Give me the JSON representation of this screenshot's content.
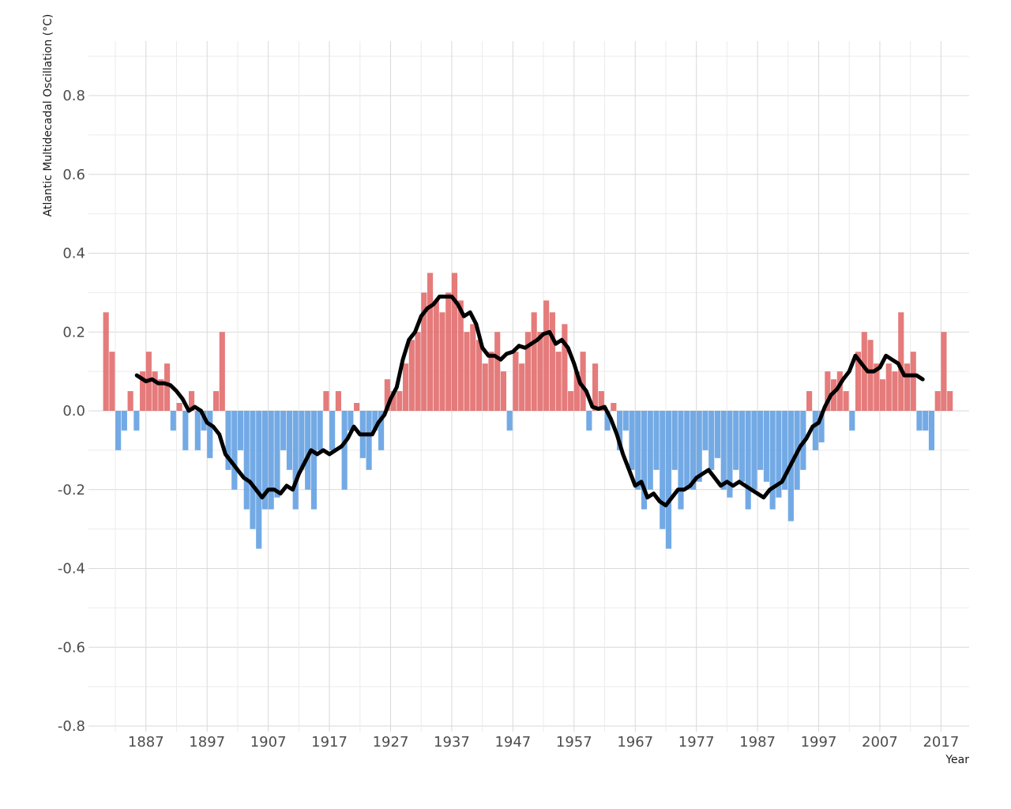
{
  "chart_data": {
    "type": "bar",
    "title": "",
    "xlabel": "Year",
    "ylabel": "Atlantic Multidecadal Oscillation (°C)",
    "xlim": [
      1877.6,
      2021.6
    ],
    "ylim": [
      -0.8,
      0.94
    ],
    "grid": true,
    "x_ticks": [
      1887,
      1897,
      1907,
      1917,
      1927,
      1937,
      1947,
      1957,
      1967,
      1977,
      1987,
      1997,
      2007,
      2017
    ],
    "y_ticks": [
      0.8,
      0.6,
      0.4,
      0.2,
      0.0,
      -0.2,
      -0.4,
      -0.6,
      -0.8
    ],
    "y_tick_labels": [
      "0.8",
      "0.6",
      "0.4",
      "0.2",
      "0.0",
      "-0.2",
      "-0.4",
      "-0.6",
      "-0.8"
    ],
    "colors": {
      "positive": "#e06464",
      "negative": "#5a9be0",
      "smooth": "#000000"
    },
    "bars": {
      "start_year": 1880,
      "values": [
        0.25,
        0.15,
        -0.1,
        -0.05,
        0.05,
        -0.05,
        0.1,
        0.15,
        0.1,
        0.08,
        0.12,
        -0.05,
        0.02,
        -0.1,
        0.05,
        -0.1,
        -0.05,
        -0.12,
        0.05,
        0.2,
        -0.15,
        -0.2,
        -0.1,
        -0.25,
        -0.3,
        -0.35,
        -0.25,
        -0.25,
        -0.22,
        -0.1,
        -0.15,
        -0.25,
        -0.15,
        -0.2,
        -0.25,
        -0.1,
        0.05,
        -0.1,
        0.05,
        -0.2,
        -0.05,
        0.02,
        -0.12,
        -0.15,
        -0.05,
        -0.1,
        0.08,
        0.05,
        0.05,
        0.12,
        0.18,
        0.2,
        0.3,
        0.35,
        0.28,
        0.25,
        0.3,
        0.35,
        0.28,
        0.2,
        0.22,
        0.18,
        0.12,
        0.15,
        0.2,
        0.1,
        -0.05,
        0.15,
        0.12,
        0.2,
        0.25,
        0.2,
        0.28,
        0.25,
        0.15,
        0.22,
        0.05,
        0.1,
        0.15,
        -0.05,
        0.12,
        0.05,
        -0.05,
        0.02,
        -0.1,
        -0.05,
        -0.15,
        -0.2,
        -0.25,
        -0.2,
        -0.15,
        -0.3,
        -0.35,
        -0.15,
        -0.25,
        -0.2,
        -0.2,
        -0.18,
        -0.1,
        -0.15,
        -0.12,
        -0.2,
        -0.22,
        -0.15,
        -0.18,
        -0.25,
        -0.2,
        -0.15,
        -0.18,
        -0.25,
        -0.22,
        -0.2,
        -0.28,
        -0.2,
        -0.15,
        0.05,
        -0.1,
        -0.08,
        0.1,
        0.08,
        0.1,
        0.05,
        -0.05,
        0.15,
        0.2,
        0.18,
        0.12,
        0.08,
        0.12,
        0.1,
        0.25,
        0.12,
        0.15,
        -0.05,
        -0.05,
        -0.1,
        0.05,
        0.2,
        0.05
      ]
    },
    "smooth": {
      "x": [
        1885.5,
        1887,
        1888,
        1889,
        1890,
        1891,
        1892,
        1893,
        1894,
        1895,
        1896,
        1897,
        1898,
        1899,
        1900,
        1901,
        1902,
        1903,
        1904,
        1905,
        1906,
        1907,
        1908,
        1909,
        1910,
        1911,
        1912,
        1913,
        1914,
        1915,
        1916,
        1917,
        1918,
        1919,
        1920,
        1921,
        1922,
        1923,
        1924,
        1925,
        1926,
        1927,
        1928,
        1929,
        1930,
        1931,
        1932,
        1933,
        1934,
        1935,
        1936,
        1937,
        1938,
        1939,
        1940,
        1941,
        1942,
        1943,
        1944,
        1945,
        1946,
        1947,
        1948,
        1949,
        1950,
        1951,
        1952,
        1953,
        1954,
        1955,
        1956,
        1957,
        1958,
        1959,
        1960,
        1961,
        1962,
        1963,
        1964,
        1965,
        1966,
        1967,
        1968,
        1969,
        1970,
        1971,
        1972,
        1973,
        1974,
        1975,
        1976,
        1977,
        1978,
        1979,
        1980,
        1981,
        1982,
        1983,
        1984,
        1985,
        1986,
        1987,
        1988,
        1989,
        1990,
        1991,
        1992,
        1993,
        1994,
        1995,
        1996,
        1997,
        1998,
        1999,
        2000,
        2001,
        2002,
        2003,
        2004,
        2005,
        2006,
        2007,
        2008,
        2009,
        2010,
        2011,
        2012,
        2013,
        2014
      ],
      "y": [
        0.09,
        0.075,
        0.08,
        0.07,
        0.07,
        0.065,
        0.05,
        0.03,
        0.0,
        0.01,
        0.0,
        -0.03,
        -0.04,
        -0.06,
        -0.11,
        -0.13,
        -0.15,
        -0.17,
        -0.18,
        -0.2,
        -0.22,
        -0.2,
        -0.2,
        -0.21,
        -0.19,
        -0.2,
        -0.16,
        -0.13,
        -0.1,
        -0.11,
        -0.1,
        -0.11,
        -0.1,
        -0.09,
        -0.07,
        -0.04,
        -0.06,
        -0.06,
        -0.06,
        -0.03,
        -0.01,
        0.03,
        0.06,
        0.13,
        0.18,
        0.2,
        0.24,
        0.26,
        0.27,
        0.29,
        0.29,
        0.29,
        0.27,
        0.24,
        0.25,
        0.22,
        0.16,
        0.14,
        0.14,
        0.13,
        0.145,
        0.15,
        0.165,
        0.16,
        0.17,
        0.18,
        0.195,
        0.2,
        0.17,
        0.18,
        0.16,
        0.12,
        0.07,
        0.05,
        0.01,
        0.005,
        0.01,
        -0.02,
        -0.06,
        -0.11,
        -0.15,
        -0.19,
        -0.18,
        -0.22,
        -0.21,
        -0.23,
        -0.24,
        -0.22,
        -0.2,
        -0.2,
        -0.19,
        -0.17,
        -0.16,
        -0.15,
        -0.17,
        -0.19,
        -0.18,
        -0.19,
        -0.18,
        -0.19,
        -0.2,
        -0.21,
        -0.22,
        -0.2,
        -0.19,
        -0.18,
        -0.15,
        -0.12,
        -0.09,
        -0.07,
        -0.04,
        -0.03,
        0.01,
        0.04,
        0.055,
        0.08,
        0.1,
        0.14,
        0.12,
        0.1,
        0.1,
        0.11,
        0.14,
        0.13,
        0.12,
        0.09,
        0.09,
        0.09,
        0.08
      ]
    }
  }
}
